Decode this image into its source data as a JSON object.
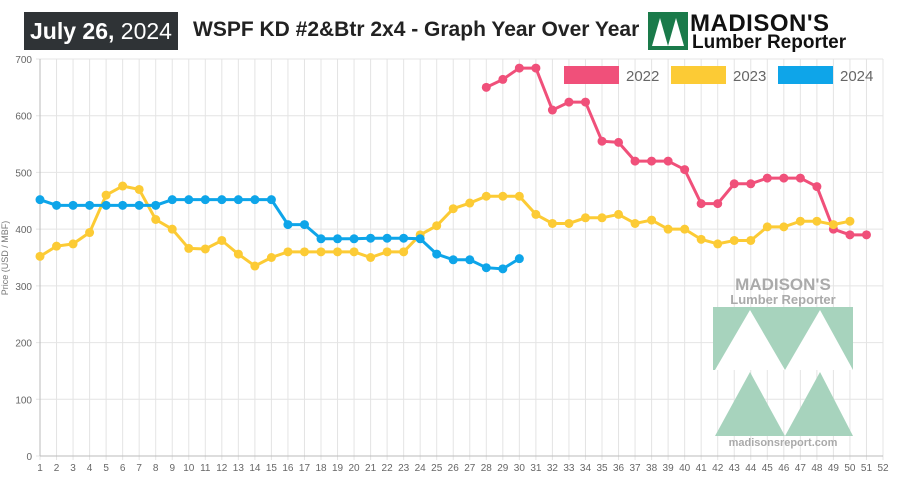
{
  "header": {
    "date_bold": "July 26,",
    "date_year": "2024",
    "title": "WSPF KD #2&Btr 2x4 - Graph Year Over Year",
    "logo_line1": "MADISON'S",
    "logo_line2": "Lumber Reporter",
    "watermark_line1": "MADISON'S",
    "watermark_line2": "Lumber Reporter",
    "watermark_url": "madisonsreport.com"
  },
  "chart_data": {
    "type": "line",
    "title": "WSPF KD #2&Btr 2x4 - Graph Year Over Year",
    "xlabel": "",
    "ylabel": "Price (USD / MBF)",
    "xlim": [
      1,
      52
    ],
    "ylim": [
      0,
      700
    ],
    "yticks": [
      0,
      100,
      200,
      300,
      400,
      500,
      600,
      700
    ],
    "grid": true,
    "legend": "top-right",
    "series": [
      {
        "name": "2022",
        "color": "#f0507a",
        "start": 28,
        "values": [
          650,
          664,
          684,
          684,
          610,
          624,
          624,
          555,
          553,
          520,
          520,
          520,
          505,
          445,
          445,
          480,
          480,
          490,
          490,
          490,
          475,
          400,
          390,
          390
        ]
      },
      {
        "name": "2023",
        "color": "#fccb35",
        "start": 1,
        "values": [
          352,
          370,
          374,
          394,
          460,
          476,
          470,
          417,
          400,
          366,
          365,
          380,
          356,
          335,
          350,
          360,
          360,
          360,
          360,
          360,
          350,
          360,
          360,
          390,
          406,
          436,
          446,
          458,
          458,
          458,
          426,
          410,
          410,
          420,
          420,
          426,
          410,
          416,
          400,
          400,
          382,
          374,
          380,
          380,
          404,
          404,
          414,
          414,
          408,
          414
        ]
      },
      {
        "name": "2024",
        "color": "#0ea5e9",
        "start": 1,
        "values": [
          452,
          442,
          442,
          442,
          442,
          442,
          442,
          442,
          452,
          452,
          452,
          452,
          452,
          452,
          452,
          408,
          408,
          383,
          383,
          383,
          384,
          384,
          384,
          383,
          356,
          346,
          346,
          332,
          330,
          348
        ]
      }
    ]
  }
}
